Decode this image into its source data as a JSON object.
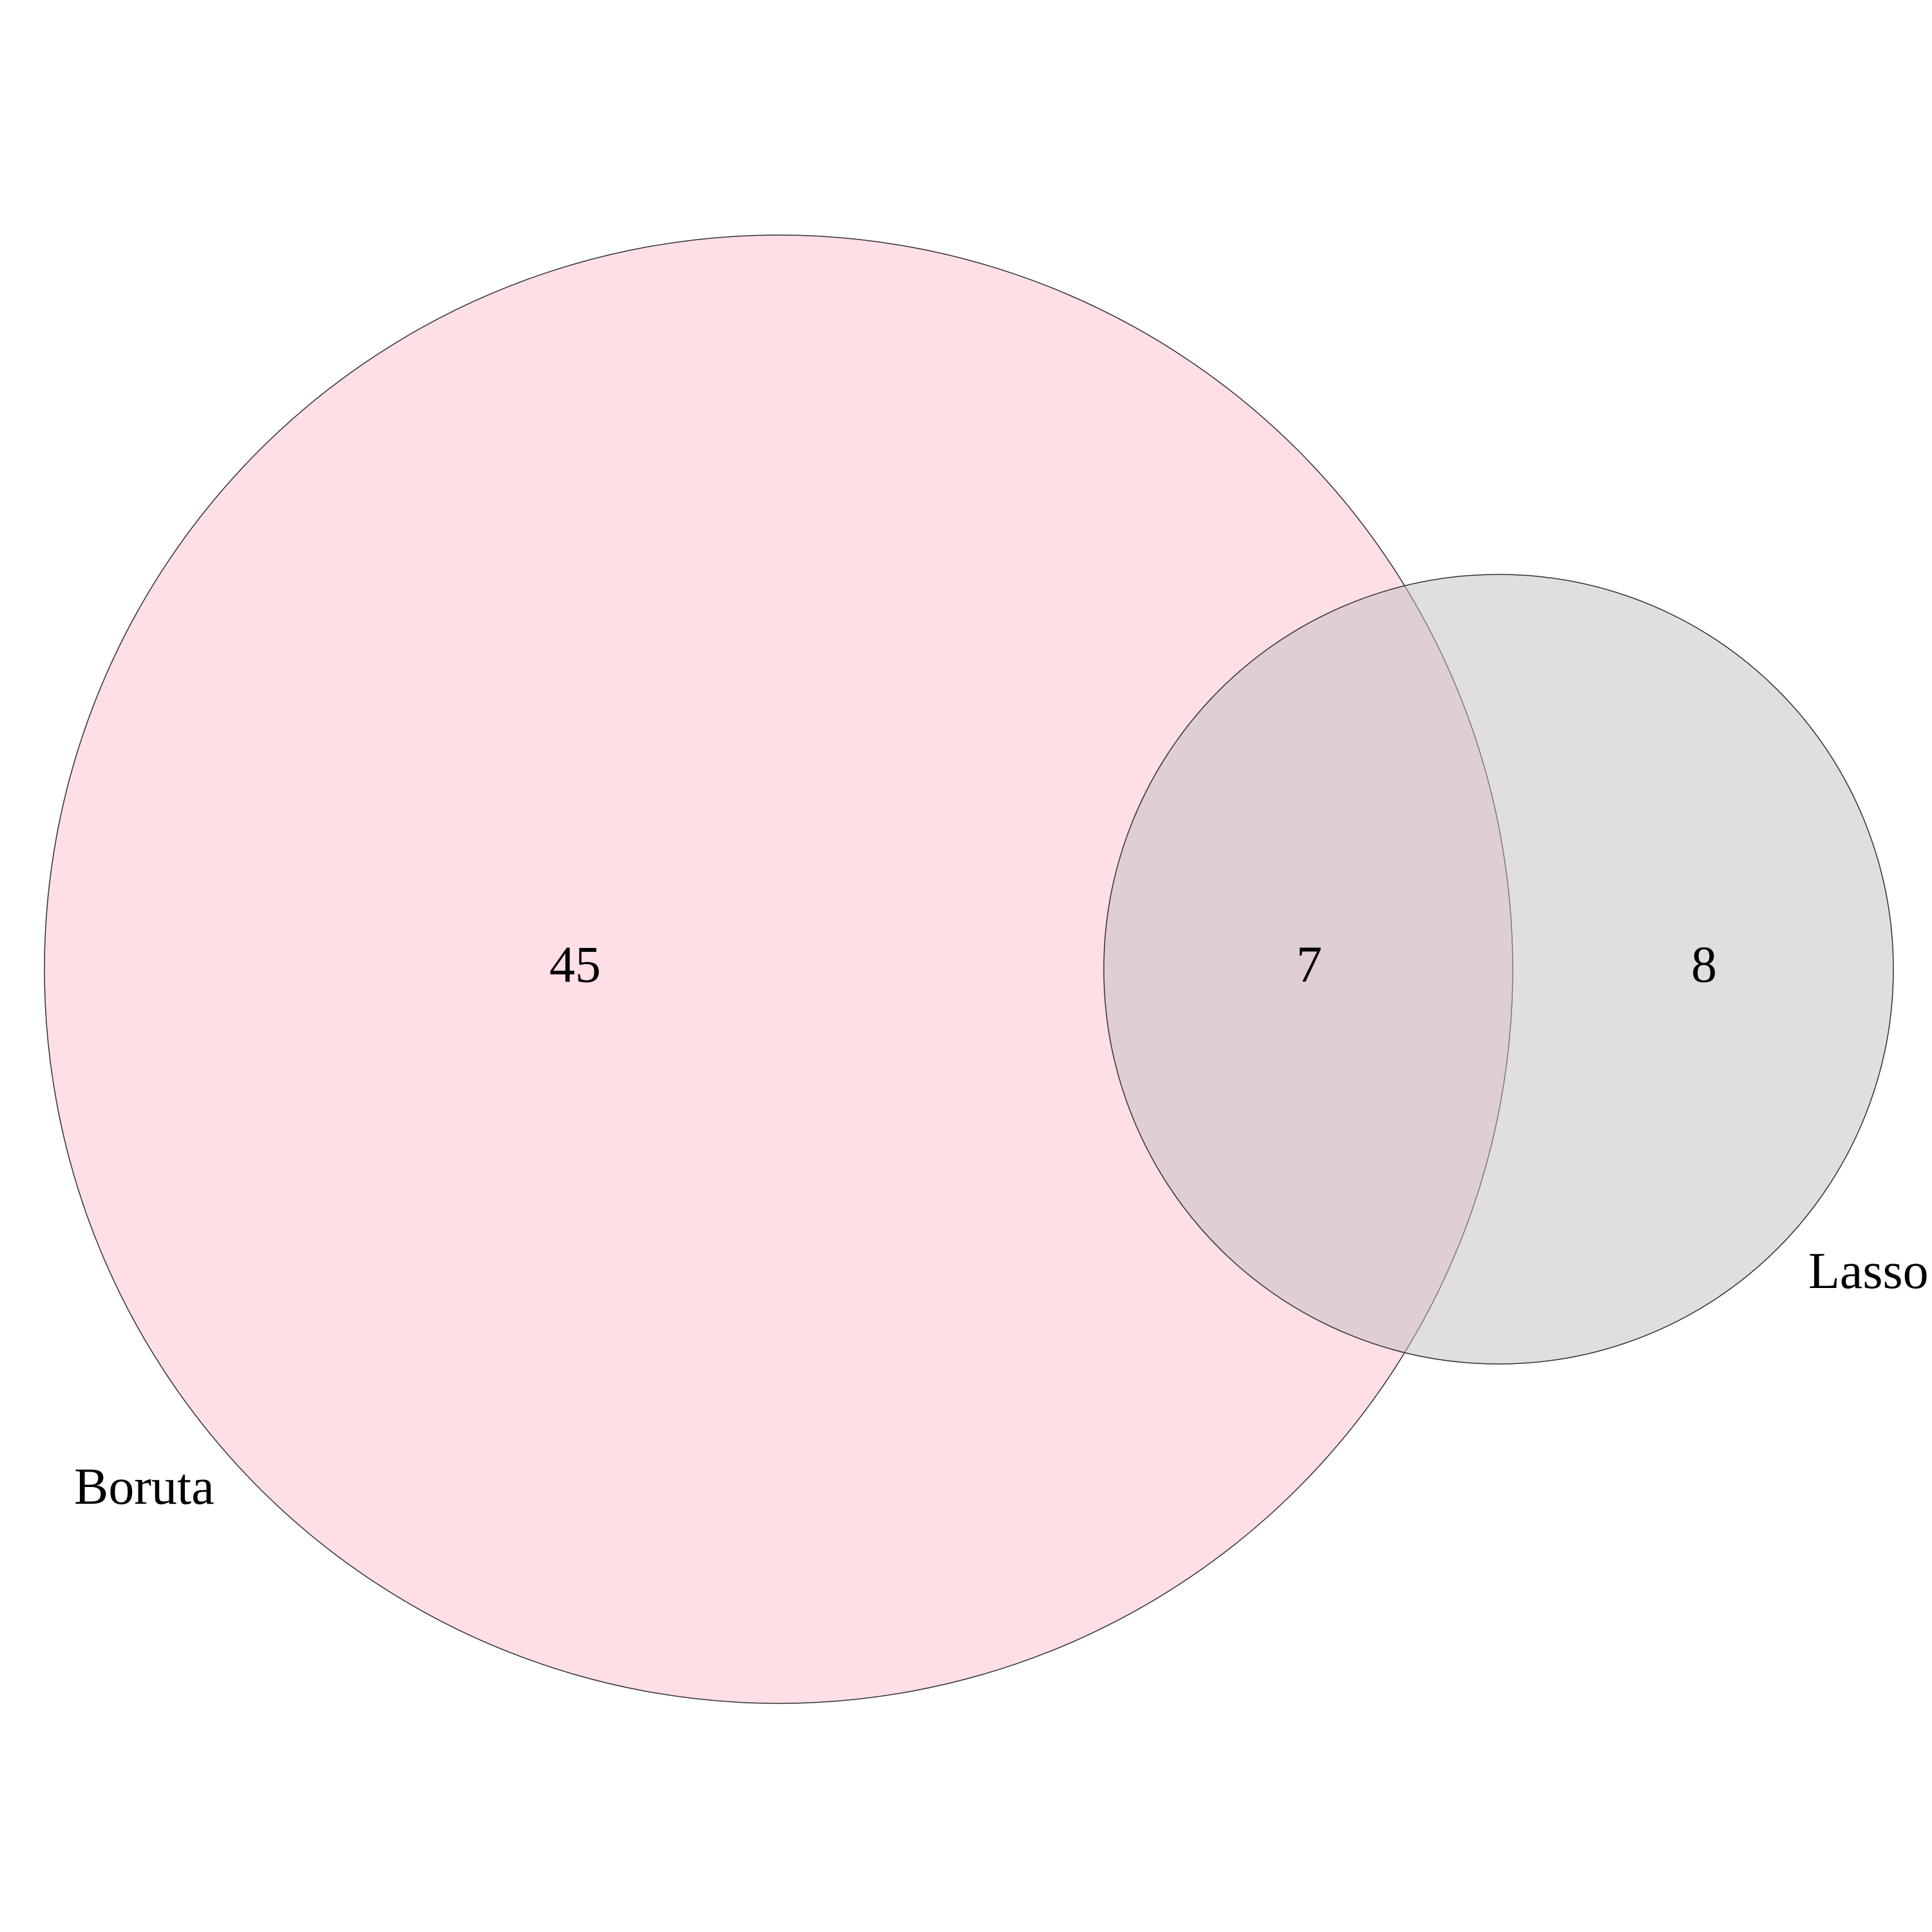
{
  "diagram": {
    "type": "venn",
    "sets": [
      {
        "name": "Boruta",
        "only_count": "45",
        "fill": "#fdc0cb",
        "fill_opacity": 0.5
      },
      {
        "name": "Lasso",
        "only_count": "8",
        "fill": "#c0c0c0",
        "fill_opacity": 0.5
      }
    ],
    "intersection_count": "7",
    "outline_color": "#303030"
  }
}
